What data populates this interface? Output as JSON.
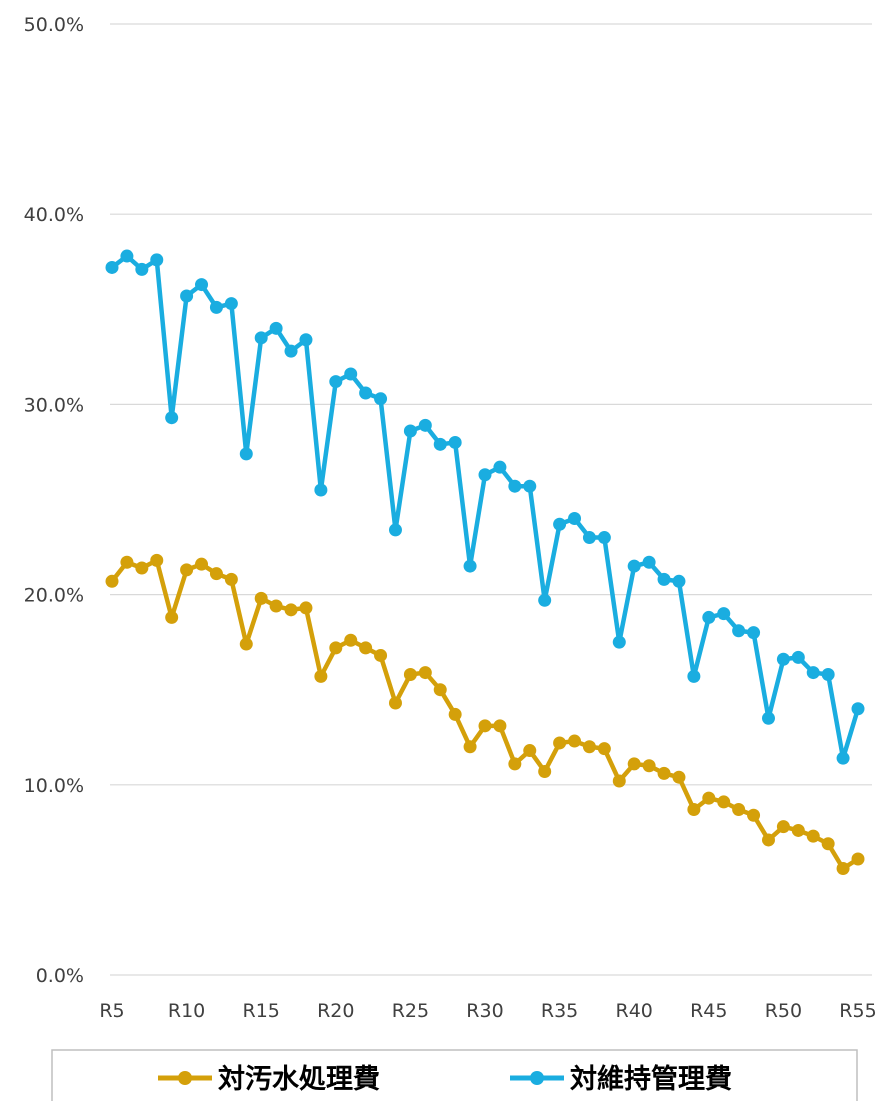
{
  "chart_data": {
    "type": "line",
    "x": [
      "R5",
      "R6",
      "R7",
      "R8",
      "R9",
      "R10",
      "R11",
      "R12",
      "R13",
      "R14",
      "R15",
      "R16",
      "R17",
      "R18",
      "R19",
      "R20",
      "R21",
      "R22",
      "R23",
      "R24",
      "R25",
      "R26",
      "R27",
      "R28",
      "R29",
      "R30",
      "R31",
      "R32",
      "R33",
      "R34",
      "R35",
      "R36",
      "R37",
      "R38",
      "R39",
      "R40",
      "R41",
      "R42",
      "R43",
      "R44",
      "R45",
      "R46",
      "R47",
      "R48",
      "R49",
      "R50",
      "R51",
      "R52",
      "R53",
      "R54",
      "R55"
    ],
    "x_tick_labels": [
      "R5",
      "R10",
      "R15",
      "R20",
      "R25",
      "R30",
      "R35",
      "R40",
      "R45",
      "R50",
      "R55"
    ],
    "y_tick_labels": [
      "0.0%",
      "10.0%",
      "20.0%",
      "30.0%",
      "40.0%",
      "50.0%"
    ],
    "ylim": [
      0,
      50
    ],
    "y_unit": "%",
    "grid": true,
    "legend_position": "bottom",
    "series": [
      {
        "name": "対汚水処理費",
        "color": "#D4A00A",
        "values": [
          20.7,
          21.7,
          21.4,
          21.8,
          18.8,
          21.3,
          21.6,
          21.1,
          20.8,
          17.4,
          19.8,
          19.4,
          19.2,
          19.3,
          15.7,
          17.2,
          17.6,
          17.2,
          16.8,
          14.3,
          15.8,
          15.9,
          15.0,
          13.7,
          12.0,
          13.1,
          13.1,
          11.1,
          11.8,
          10.7,
          12.2,
          12.3,
          12.0,
          11.9,
          10.2,
          11.1,
          11.0,
          10.6,
          10.4,
          8.7,
          9.3,
          9.1,
          8.7,
          8.4,
          7.1,
          7.8,
          7.6,
          7.3,
          6.9,
          5.6,
          6.1
        ]
      },
      {
        "name": "対維持管理費",
        "color": "#1AADE0",
        "values": [
          37.2,
          37.8,
          37.1,
          37.6,
          29.3,
          35.7,
          36.3,
          35.1,
          35.3,
          27.4,
          33.5,
          34.0,
          32.8,
          33.4,
          25.5,
          31.2,
          31.6,
          30.6,
          30.3,
          23.4,
          28.6,
          28.9,
          27.9,
          28.0,
          21.5,
          26.3,
          26.7,
          25.7,
          25.7,
          19.7,
          23.7,
          24.0,
          23.0,
          23.0,
          17.5,
          21.5,
          21.7,
          20.8,
          20.7,
          15.7,
          18.8,
          19.0,
          18.1,
          18.0,
          13.5,
          16.6,
          16.7,
          15.9,
          15.8,
          11.4,
          14.0
        ]
      }
    ]
  }
}
